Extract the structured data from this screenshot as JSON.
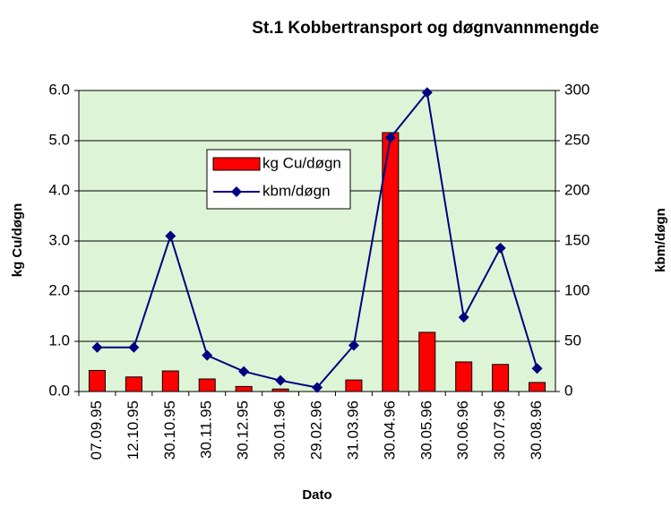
{
  "chart_data": {
    "type": "bar_line",
    "title": "St.1 Kobbertransport og døgnvannmengde",
    "x_label": "Dato",
    "y_label": "kg Cu/døgn",
    "y2_label": "kbm/døgn",
    "categories": [
      "07.09.95",
      "12.10.95",
      "30.10.95",
      "30.11.95",
      "30.12.95",
      "30.01.96",
      "29.02.96",
      "31.03.96",
      "30.04.96",
      "30.05.96",
      "30.06.96",
      "30.07.96",
      "30.08.96"
    ],
    "series": [
      {
        "name": "kg Cu/døgn",
        "type": "bar",
        "color": "#ff0000",
        "values": [
          0.42,
          0.29,
          0.41,
          0.25,
          0.1,
          0.05,
          0,
          0.23,
          5.16,
          1.18,
          0.59,
          0.54,
          0.18
        ]
      },
      {
        "name": "kbm/døgn",
        "type": "line",
        "axis": "y2",
        "color": "#000080",
        "values": [
          44,
          44,
          155,
          36,
          20,
          11,
          4,
          46,
          253,
          298,
          74,
          143,
          23
        ]
      }
    ],
    "ylim": [
      0,
      6
    ],
    "yticks": [
      {
        "value": 0,
        "label": "0.0"
      },
      {
        "value": 1,
        "label": "1.0"
      },
      {
        "value": 2,
        "label": "2.0"
      },
      {
        "value": 3,
        "label": "3.0"
      },
      {
        "value": 4,
        "label": "4.0"
      },
      {
        "value": 5,
        "label": "5.0"
      },
      {
        "value": 6,
        "label": "6.0"
      }
    ],
    "y2lim": [
      0,
      300
    ],
    "y2ticks": [
      0,
      50,
      100,
      150,
      200,
      250,
      300
    ],
    "grid": true,
    "plot_background": "#ddf5d6"
  }
}
